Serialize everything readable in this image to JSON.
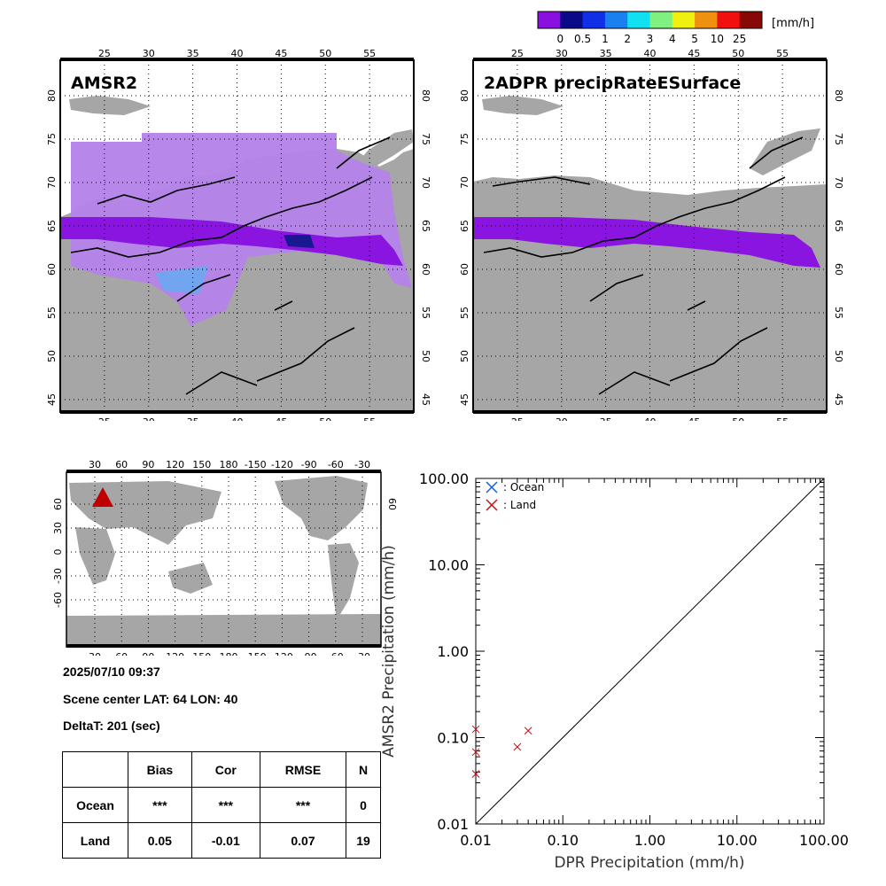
{
  "colorbar": {
    "unit": "[mm/h]",
    "ticks": [
      "0",
      "0.5",
      "1",
      "2",
      "3",
      "4",
      "5",
      "10",
      "25"
    ],
    "colors": [
      "#8a10e0",
      "#0a0a88",
      "#1030e8",
      "#1a80f0",
      "#10e0f0",
      "#80f080",
      "#f0f010",
      "#f09010",
      "#f01010",
      "#880808"
    ]
  },
  "maps": [
    {
      "title": "AMSR2",
      "lon_ticks": [
        "25",
        "30",
        "35",
        "40",
        "45",
        "50",
        "55"
      ],
      "lat_ticks": [
        "80",
        "75",
        "70",
        "65",
        "60",
        "55",
        "50",
        "45"
      ]
    },
    {
      "title": "2ADPR precipRateESurface",
      "lon_ticks": [
        "25",
        "30",
        "35",
        "40",
        "45",
        "50",
        "55"
      ],
      "lat_ticks": [
        "80",
        "75",
        "70",
        "65",
        "60",
        "55",
        "50",
        "45"
      ]
    }
  ],
  "globe": {
    "lon_ticks": [
      "30",
      "60",
      "90",
      "120",
      "150",
      "180",
      "-150",
      "-120",
      "-90",
      "-60",
      "-30"
    ],
    "lat_ticks_left": [
      "60",
      "30",
      "0",
      "-30",
      "-60"
    ],
    "lat_ticks_right": [
      "60"
    ]
  },
  "info": {
    "datetime": "2025/07/10 09:37",
    "scene_center": "Scene center LAT: 64   LON:  40",
    "delta_t": "DeltaT:  201 (sec)"
  },
  "stats": {
    "headers": [
      "Bias",
      "Cor",
      "RMSE",
      "N"
    ],
    "rows": [
      {
        "label": "Ocean",
        "values": [
          "***",
          "***",
          "***",
          "0"
        ]
      },
      {
        "label": "Land",
        "values": [
          "0.05",
          "-0.01",
          "0.07",
          "19"
        ]
      }
    ]
  },
  "chart_data": {
    "type": "scatter",
    "xlabel": "DPR Precipitation (mm/h)",
    "ylabel": "AMSR2 Precipitation (mm/h)",
    "xscale": "log",
    "yscale": "log",
    "xlim": [
      0.01,
      100
    ],
    "ylim": [
      0.01,
      100
    ],
    "tick_labels": [
      "0.01",
      "0.10",
      "1.00",
      "10.00",
      "100.00"
    ],
    "legend": [
      {
        "name": ": Ocean",
        "color": "#1060e0"
      },
      {
        "name": ": Land",
        "color": "#c01010"
      }
    ],
    "legend_position": "top-left",
    "series": [
      {
        "name": ": Ocean",
        "points": []
      },
      {
        "name": ": Land",
        "points": [
          [
            0.01,
            0.125
          ],
          [
            0.01,
            0.068
          ],
          [
            0.01,
            0.038
          ],
          [
            0.03,
            0.078
          ],
          [
            0.04,
            0.12
          ]
        ]
      }
    ]
  }
}
